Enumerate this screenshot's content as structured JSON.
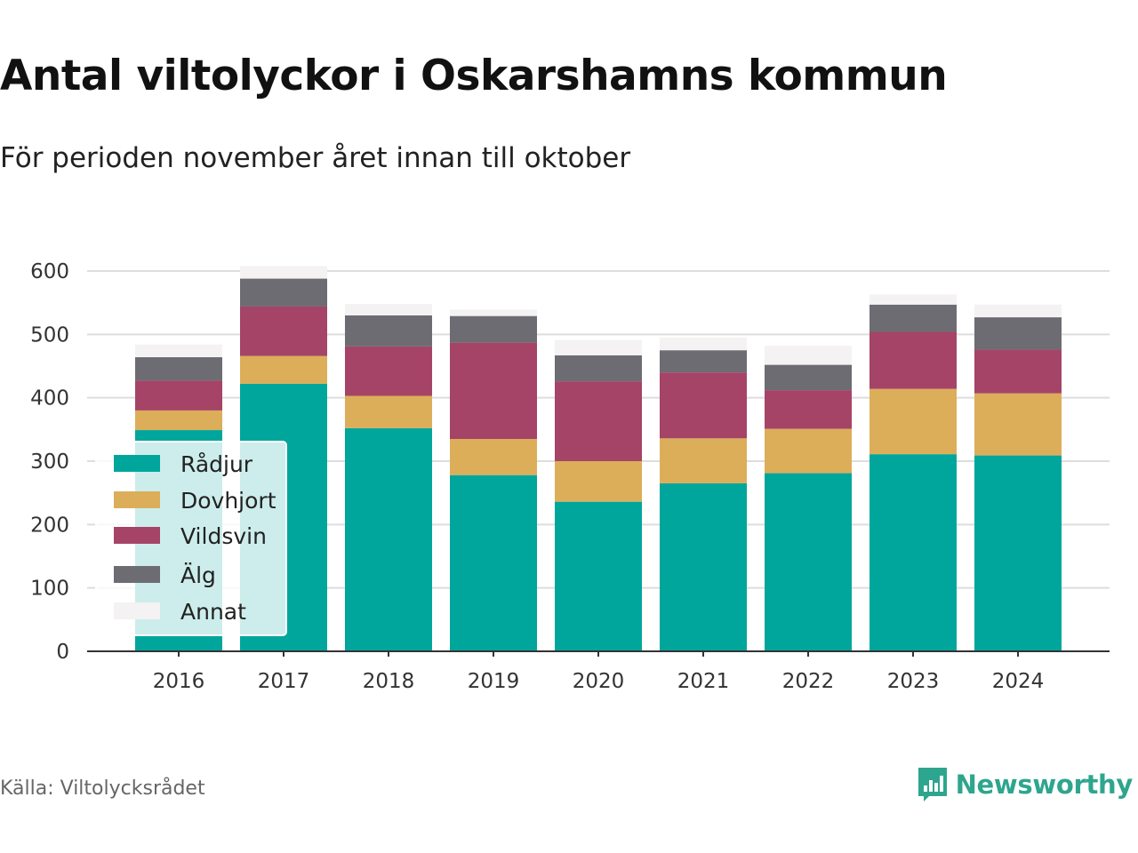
{
  "header": {
    "title": "Antal viltolyckor i Oskarshamns kommun",
    "subtitle": "För perioden november året innan till oktober"
  },
  "footer": {
    "source": "Källa: Viltolycksrådet",
    "brand": "Newsworthy",
    "brand_icon": "bar-chart-logo-icon",
    "brand_color": "#2ea58e"
  },
  "chart_data": {
    "type": "bar",
    "stacked": true,
    "categories": [
      "2016",
      "2017",
      "2018",
      "2019",
      "2020",
      "2021",
      "2022",
      "2023",
      "2024"
    ],
    "series": [
      {
        "name": "Rådjur",
        "color": "#00a69c",
        "values": [
          349,
          422,
          352,
          278,
          236,
          265,
          281,
          311,
          309
        ]
      },
      {
        "name": "Dovhjort",
        "color": "#dcae5a",
        "values": [
          31,
          44,
          51,
          57,
          64,
          71,
          70,
          103,
          98
        ]
      },
      {
        "name": "Vildsvin",
        "color": "#a54467",
        "values": [
          47,
          78,
          78,
          152,
          126,
          104,
          61,
          90,
          69
        ]
      },
      {
        "name": "Älg",
        "color": "#6d6c73",
        "values": [
          37,
          44,
          49,
          42,
          41,
          35,
          40,
          43,
          51
        ]
      },
      {
        "name": "Annat",
        "color": "#f4f2f3",
        "values": [
          20,
          20,
          18,
          10,
          24,
          20,
          30,
          16,
          20
        ]
      }
    ],
    "ylim": [
      0,
      600
    ],
    "yticks": [
      0,
      100,
      200,
      300,
      400,
      500,
      600
    ],
    "grid": true,
    "legend": "bottom-left (inside plot)"
  }
}
